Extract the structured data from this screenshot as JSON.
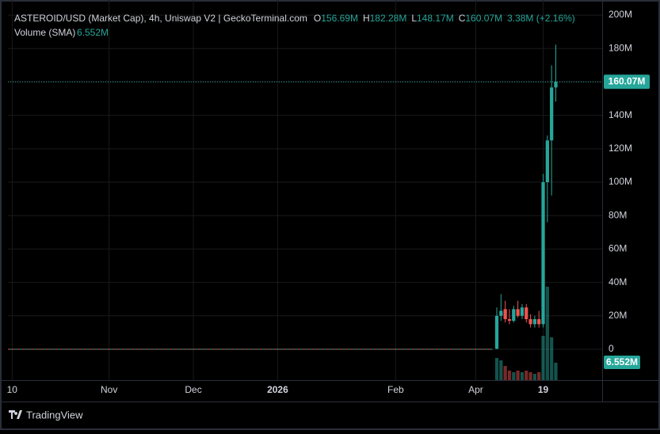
{
  "chart_data": {
    "type": "candlestick",
    "title": "ASTEROID/USD (Market Cap), 4h, Uniswap V2 | GeckoTerminal.com",
    "ohlc_labels": [
      {
        "key": "O",
        "value": "156.69M"
      },
      {
        "key": "H",
        "value": "182.28M"
      },
      {
        "key": "L",
        "value": "148.17M"
      },
      {
        "key": "C",
        "value": "160.07M"
      }
    ],
    "change": "3.38M (+2.16%)",
    "volume_title": "Volume (SMA)",
    "volume_sma": "6.552M",
    "xlim": [
      0,
      141
    ],
    "xticks": [
      {
        "value": 1,
        "label": "10"
      },
      {
        "value": 24,
        "label": "Nov"
      },
      {
        "value": 44,
        "label": "Dec"
      },
      {
        "value": 64,
        "label": "2026"
      },
      {
        "value": 92,
        "label": "Feb"
      },
      {
        "value": 111,
        "label": "Apr"
      },
      {
        "value": 127,
        "label": "19"
      }
    ],
    "ylim": [
      -18.5,
      204.3
    ],
    "yticks": [
      0,
      {
        "value": 20,
        "label": "20M"
      },
      {
        "value": 40,
        "label": "40M"
      },
      {
        "value": 60,
        "label": "60M"
      },
      {
        "value": 80,
        "label": "80M"
      },
      {
        "value": 100,
        "label": "100M"
      },
      {
        "value": 120,
        "label": "120M"
      },
      {
        "value": 140,
        "label": "140M"
      },
      {
        "value": 160,
        "label": "160M"
      },
      {
        "value": 180,
        "label": "180M"
      },
      {
        "value": 200,
        "label": "200M"
      }
    ],
    "grid": true,
    "up_color": "#26a69a",
    "down_color": "#ef5350",
    "flat": {
      "x": [
        0,
        115
      ],
      "values": [
        0,
        0
      ]
    },
    "x": [
      116,
      117,
      118,
      119,
      120,
      121,
      122,
      123,
      124,
      125,
      126,
      127,
      128,
      129,
      130
    ],
    "open": [
      0.3,
      20,
      24,
      18,
      17,
      24,
      20,
      25,
      18,
      15,
      18,
      15,
      100,
      125,
      156.69
    ],
    "high": [
      25,
      33,
      29,
      24,
      26,
      29,
      27,
      27,
      21,
      20,
      23,
      105,
      128,
      170,
      182.28
    ],
    "low": [
      0,
      17,
      16,
      15,
      16,
      19,
      18,
      16,
      13,
      13,
      13,
      13,
      76,
      92,
      148.17
    ],
    "close": [
      20,
      23,
      18,
      17,
      24,
      20,
      25,
      18,
      15,
      18,
      15,
      100,
      125,
      156.69,
      160.07
    ],
    "volume": [
      14,
      12.5,
      9,
      6,
      5,
      6,
      5,
      6,
      5,
      4,
      5,
      28,
      59,
      27,
      11
    ],
    "last_label": "160.07M",
    "footer": "TradingView"
  }
}
